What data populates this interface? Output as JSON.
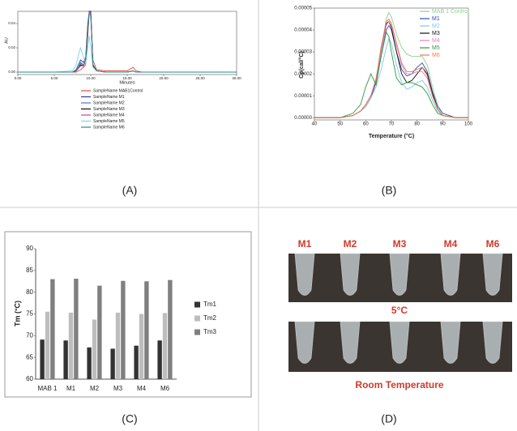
{
  "panels": [
    "(A)",
    "(B)",
    "(C)",
    "(D)"
  ],
  "photo": {
    "labels": [
      "M1",
      "M2",
      "M3",
      "M4",
      "M6"
    ],
    "top_caption": "5°C",
    "bottom_caption": "Room Temperature"
  },
  "chart_data": [
    {
      "type": "line",
      "x_label": "Minutes",
      "y_label": "AU",
      "x": [
        0,
        5,
        7.5,
        8,
        8.3,
        8.6,
        9,
        9.3,
        9.6,
        9.8,
        10,
        10.3,
        10.8,
        12,
        15,
        15.8,
        16.2,
        17,
        20,
        25,
        30
      ],
      "series": [
        {
          "name": "SampleName MAB1Control",
          "color": "#e8473a",
          "values": [
            0,
            0,
            0,
            0,
            0.001,
            0.002,
            0.004,
            0.006,
            0.03,
            0.05,
            0.05,
            0.01,
            0.002,
            0.001,
            0.001,
            0.004,
            0.001,
            0,
            0,
            0,
            0
          ]
        },
        {
          "name": "SampleName M1",
          "color": "#2c3e8c",
          "values": [
            0,
            0,
            0,
            0.002,
            0.006,
            0.01,
            0.008,
            0.012,
            0.04,
            0.05,
            0.05,
            0.006,
            0.001,
            0,
            0,
            0.001,
            0,
            0,
            0,
            0,
            0
          ]
        },
        {
          "name": "SampleName M2",
          "color": "#4a78c0",
          "values": [
            0,
            0,
            0,
            0.001,
            0.004,
            0.008,
            0.006,
            0.01,
            0.035,
            0.05,
            0.048,
            0.005,
            0.001,
            0,
            0,
            0.001,
            0,
            0,
            0,
            0,
            0
          ]
        },
        {
          "name": "SampleName M3",
          "color": "#111111",
          "values": [
            0,
            0,
            0,
            0.001,
            0.003,
            0.006,
            0.005,
            0.01,
            0.038,
            0.05,
            0.05,
            0.006,
            0.001,
            0,
            0,
            0.001,
            0,
            0,
            0,
            0,
            0
          ]
        },
        {
          "name": "SampleName M4",
          "color": "#d040a0",
          "values": [
            0,
            0,
            0,
            0.001,
            0.003,
            0.005,
            0.005,
            0.009,
            0.036,
            0.05,
            0.049,
            0.005,
            0.001,
            0,
            0,
            0.001,
            0,
            0,
            0,
            0,
            0
          ]
        },
        {
          "name": "SampleName M5",
          "color": "#7fd3e8",
          "values": [
            0,
            0,
            0.001,
            0.006,
            0.014,
            0.02,
            0.012,
            0.008,
            0.02,
            0.03,
            0.02,
            0.004,
            0.001,
            0,
            0,
            0.001,
            0,
            0,
            0,
            0,
            0
          ]
        },
        {
          "name": "SampleName M6",
          "color": "#2a8a8a",
          "values": [
            0,
            0,
            0,
            0.001,
            0.004,
            0.007,
            0.006,
            0.01,
            0.033,
            0.05,
            0.046,
            0.005,
            0.001,
            0,
            0,
            0.001,
            0,
            0,
            0,
            0,
            0
          ]
        }
      ],
      "xlim": [
        0,
        30
      ],
      "xticks": [
        {
          "value": 0,
          "label": "0.00"
        },
        {
          "value": 5,
          "label": "5.00"
        },
        {
          "value": 10,
          "label": "10.00"
        },
        {
          "value": 15,
          "label": "15.00"
        },
        {
          "value": 20,
          "label": "20.00"
        },
        {
          "value": 25,
          "label": "25.00"
        },
        {
          "value": 30,
          "label": "30.00"
        }
      ],
      "ylim": [
        -0.002,
        0.05
      ],
      "yticks": [
        {
          "value": 0,
          "label": "0.00"
        },
        {
          "value": 0.02,
          "label": "0.02"
        },
        {
          "value": 0.04,
          "label": "0.04"
        }
      ]
    },
    {
      "type": "line",
      "x_label": "Temperature (°C)",
      "y_label": "Cp(cal/°C)",
      "x": [
        40,
        45,
        50,
        55,
        58,
        60,
        62,
        64,
        66,
        68,
        69,
        70,
        72,
        74,
        76,
        78,
        80,
        82,
        84,
        86,
        88,
        90,
        95,
        100
      ],
      "series": [
        {
          "name": "MAB 1 Control",
          "color": "#8fd08f",
          "values": [
            0,
            0,
            0,
            1e-06,
            3e-06,
            6e-06,
            1e-05,
            1.6e-05,
            3e-05,
            4.5e-05,
            4.8e-05,
            4.6e-05,
            3.8e-05,
            3.2e-05,
            2.9e-05,
            2.8e-05,
            2.8e-05,
            2.8e-05,
            2.4e-05,
            1.4e-05,
            6e-06,
            2e-06,
            0,
            0
          ]
        },
        {
          "name": "M1",
          "color": "#2f4fb0",
          "values": [
            0,
            0,
            0,
            1e-06,
            3e-06,
            5e-06,
            9e-06,
            1.6e-05,
            2.8e-05,
            4e-05,
            4.2e-05,
            4e-05,
            3e-05,
            2.2e-05,
            1.9e-05,
            2e-05,
            2.3e-05,
            2.5e-05,
            2.1e-05,
            1.2e-05,
            5e-06,
            2e-06,
            0,
            0
          ]
        },
        {
          "name": "M2",
          "color": "#7ec8e8",
          "values": [
            0,
            0,
            0,
            1e-06,
            3e-06,
            5e-06,
            9e-06,
            1.4e-05,
            2.2e-05,
            3.2e-05,
            3.6e-05,
            3.4e-05,
            2.4e-05,
            1.6e-05,
            1.3e-05,
            1.4e-05,
            1.6e-05,
            1.7e-05,
            1.4e-05,
            8e-06,
            3e-06,
            1e-06,
            0,
            0
          ]
        },
        {
          "name": "M3",
          "color": "#111111",
          "values": [
            0,
            0,
            0,
            1e-06,
            3e-06,
            6e-06,
            1e-05,
            1.7e-05,
            3.2e-05,
            4.3e-05,
            4.4e-05,
            4.1e-05,
            3e-05,
            2e-05,
            1.6e-05,
            1.7e-05,
            2e-05,
            2.3e-05,
            2e-05,
            1.1e-05,
            4e-06,
            1e-06,
            0,
            0
          ]
        },
        {
          "name": "M4",
          "color": "#e080c8",
          "values": [
            0,
            0,
            0,
            1e-06,
            3e-06,
            6e-06,
            1e-05,
            1.8e-05,
            3e-05,
            4.2e-05,
            4.4e-05,
            4.2e-05,
            3.3e-05,
            2.4e-05,
            2e-05,
            2e-05,
            2.1e-05,
            2.1e-05,
            1.8e-05,
            1e-05,
            4e-06,
            1e-06,
            0,
            0
          ]
        },
        {
          "name": "M5",
          "color": "#2e9a3a",
          "values": [
            0,
            0,
            0,
            2e-06,
            6e-06,
            1.4e-05,
            2e-05,
            1.5e-05,
            2.8e-05,
            3.9e-05,
            3.7e-05,
            3e-05,
            1.8e-05,
            1.5e-05,
            1.6e-05,
            1.6e-05,
            1.5e-05,
            1.4e-05,
            1.1e-05,
            6e-06,
            2e-06,
            1e-06,
            0,
            0
          ]
        },
        {
          "name": "M6",
          "color": "#f07850",
          "values": [
            0,
            0,
            0,
            1e-06,
            3e-06,
            6e-06,
            1e-05,
            1.7e-05,
            3.2e-05,
            4.4e-05,
            4.5e-05,
            4.3e-05,
            3.4e-05,
            2.5e-05,
            2.1e-05,
            2.1e-05,
            2.2e-05,
            2.3e-05,
            1.9e-05,
            1e-05,
            4e-06,
            1e-06,
            0,
            0
          ]
        }
      ],
      "xlim": [
        40,
        100
      ],
      "xticks": [
        40,
        50,
        60,
        70,
        80,
        90,
        100
      ],
      "ylim": [
        -1e-06,
        5e-05
      ],
      "yticks": [
        {
          "value": 0,
          "label": "0.00000"
        },
        {
          "value": 1e-05,
          "label": "0.00001"
        },
        {
          "value": 2e-05,
          "label": "0.00002"
        },
        {
          "value": 3e-05,
          "label": "0.00003"
        },
        {
          "value": 4e-05,
          "label": "0.00004"
        },
        {
          "value": 5e-05,
          "label": "0.00005"
        }
      ]
    },
    {
      "type": "bar",
      "y_label": "Tm (°C)",
      "categories": [
        "MAB 1",
        "M1",
        "M2",
        "M3",
        "M4",
        "M6"
      ],
      "series": [
        {
          "name": "Tm1",
          "color": "#333333",
          "values": [
            69.1,
            68.9,
            67.3,
            67.0,
            67.7,
            68.9
          ]
        },
        {
          "name": "Tm2",
          "color": "#bdbdbd",
          "values": [
            75.5,
            75.3,
            73.7,
            75.3,
            75.0,
            75.2
          ]
        },
        {
          "name": "Tm3",
          "color": "#7f7f7f",
          "values": [
            83.0,
            83.1,
            81.5,
            82.6,
            82.5,
            82.8
          ]
        }
      ],
      "ylim": [
        60,
        90
      ],
      "yticks": [
        60,
        65,
        70,
        75,
        80,
        85,
        90
      ],
      "legend": "right"
    }
  ]
}
